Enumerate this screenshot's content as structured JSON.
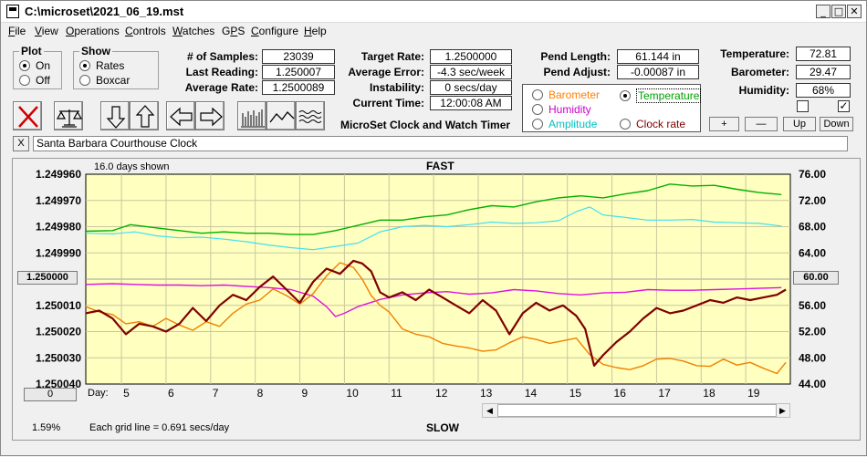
{
  "window": {
    "title": "C:\\microset\\2021_06_19.mst"
  },
  "menu": [
    {
      "pre": "",
      "u": "F",
      "post": "ile"
    },
    {
      "pre": "",
      "u": "V",
      "post": "iew"
    },
    {
      "pre": "",
      "u": "O",
      "post": "perations"
    },
    {
      "pre": "",
      "u": "C",
      "post": "ontrols"
    },
    {
      "pre": "",
      "u": "W",
      "post": "atches"
    },
    {
      "pre": "G",
      "u": "P",
      "post": "S"
    },
    {
      "pre": "",
      "u": "C",
      "post": "onfigure"
    },
    {
      "pre": "",
      "u": "H",
      "post": "elp"
    }
  ],
  "plot": {
    "label": "Plot",
    "on": "On",
    "off": "Off",
    "selected": "On"
  },
  "show": {
    "label": "Show",
    "rates": "Rates",
    "boxcar": "Boxcar",
    "selected": "Rates"
  },
  "stats": {
    "samples_label": "# of Samples:",
    "samples": "23039",
    "last_label": "Last Reading:",
    "last": "1.250007",
    "avg_rate_label": "Average Rate:",
    "avg_rate": "1.2500089",
    "target_label": "Target Rate:",
    "target": "1.2500000",
    "avg_err_label": "Average Error:",
    "avg_err": "-4.3 sec/week",
    "instab_label": "Instability:",
    "instab": "0 secs/day",
    "time_label": "Current Time:",
    "time": "12:00:08 AM",
    "app_label": "MicroSet Clock and Watch Timer",
    "pend_len_label": "Pend Length:",
    "pend_len": "61.144 in",
    "pend_adj_label": "Pend Adjust:",
    "pend_adj": "-0.00087 in",
    "temp_label": "Temperature:",
    "temp": "72.81",
    "baro_label": "Barometer:",
    "baro": "29.47",
    "hum_label": "Humidity:",
    "hum": "68%"
  },
  "sensor_select": {
    "barometer": "Barometer",
    "temperature": "Temperature",
    "humidity": "Humidity",
    "amplitude": "Amplitude",
    "clock_rate": "Clock rate",
    "selected": "Temperature",
    "colors": {
      "barometer": "#ff8000",
      "temperature": "#00a000",
      "humidity": "#cc00cc",
      "amplitude": "#00c0c0",
      "clock_rate": "#800000"
    }
  },
  "scale_buttons": {
    "plus": "+",
    "minus": "—",
    "up": "Up",
    "down": "Down"
  },
  "checks": {
    "left": false,
    "right": true
  },
  "watch_name": "Santa Barbara Courthouse Clock",
  "close_x": "X",
  "chart_data": {
    "type": "line",
    "top_label": "FAST",
    "bottom_label": "SLOW",
    "days_shown": "16.0 days shown",
    "grid_note": "Each grid line = 0.691 secs/day",
    "percent": "1.59%",
    "left_button": "1.250000",
    "right_button": "60.00",
    "zero_button": "0",
    "day_label": "Day:",
    "x_ticks": [
      "5",
      "6",
      "7",
      "8",
      "9",
      "10",
      "11",
      "12",
      "13",
      "14",
      "15",
      "16",
      "17",
      "18",
      "19"
    ],
    "x_range": [
      4.2,
      20.0
    ],
    "y_left_ticks": [
      "1.249960",
      "1.249970",
      "1.249980",
      "1.249990",
      "1.250000",
      "1.250010",
      "1.250020",
      "1.250030",
      "1.250040"
    ],
    "y_left_range": [
      1.24996,
      1.25004
    ],
    "y_right_ticks": [
      "76.00",
      "72.00",
      "68.00",
      "64.00",
      "60.00",
      "56.00",
      "52.00",
      "48.00",
      "44.00"
    ],
    "y_right_range": [
      76,
      44
    ],
    "series": [
      {
        "name": "Temperature",
        "color": "#00b000",
        "width": 1.4,
        "x": [
          4.2,
          4.8,
          5.2,
          5.8,
          6.3,
          6.8,
          7.3,
          7.8,
          8.3,
          8.8,
          9.3,
          9.8,
          10.3,
          10.8,
          11.3,
          11.8,
          12.3,
          12.8,
          13.3,
          13.8,
          14.3,
          14.8,
          15.3,
          15.8,
          16.3,
          16.8,
          17.3,
          17.8,
          18.3,
          18.8,
          19.3,
          19.8
        ],
        "y": [
          67.3,
          67.4,
          68.3,
          67.8,
          67.4,
          67.0,
          67.2,
          67.0,
          67.0,
          66.8,
          66.8,
          67.4,
          68.2,
          69.0,
          69.0,
          69.5,
          69.8,
          70.6,
          71.2,
          71.0,
          71.8,
          72.4,
          72.7,
          72.4,
          73.0,
          73.5,
          74.5,
          74.2,
          74.3,
          73.7,
          73.2,
          72.9
        ]
      },
      {
        "name": "Amplitude",
        "color": "#40e0f0",
        "width": 1.2,
        "x": [
          4.2,
          4.8,
          5.3,
          5.8,
          6.3,
          6.8,
          7.3,
          7.8,
          8.3,
          8.8,
          9.3,
          9.8,
          10.3,
          10.8,
          11.3,
          11.8,
          12.3,
          12.8,
          13.3,
          13.8,
          14.3,
          14.8,
          15.2,
          15.5,
          15.8,
          16.3,
          16.8,
          17.3,
          17.8,
          18.3,
          18.8,
          19.3,
          19.8
        ],
        "y": [
          67.0,
          66.9,
          67.2,
          66.6,
          66.3,
          66.4,
          66.1,
          65.7,
          65.2,
          64.8,
          64.5,
          65.0,
          65.5,
          67.2,
          68.0,
          68.2,
          68.0,
          68.3,
          68.7,
          68.5,
          68.6,
          68.9,
          70.3,
          71.0,
          69.8,
          69.4,
          69.0,
          69.0,
          69.1,
          68.7,
          68.6,
          68.5,
          68.1
        ]
      },
      {
        "name": "Humidity",
        "color": "#e010e0",
        "width": 1.4,
        "x": [
          4.2,
          4.8,
          5.3,
          5.8,
          6.3,
          6.8,
          7.3,
          7.8,
          8.3,
          8.8,
          9.3,
          9.6,
          9.8,
          10.0,
          10.3,
          10.8,
          11.3,
          11.8,
          12.3,
          12.8,
          13.3,
          13.8,
          14.3,
          14.8,
          15.3,
          15.8,
          16.3,
          16.8,
          17.3,
          17.8,
          18.3,
          18.8,
          19.3,
          19.8
        ],
        "y": [
          59.2,
          59.3,
          59.2,
          59.1,
          59.1,
          59.0,
          59.1,
          58.9,
          58.7,
          58.4,
          57.4,
          55.8,
          54.3,
          54.8,
          55.8,
          56.9,
          57.6,
          57.9,
          58.1,
          57.7,
          57.9,
          58.4,
          58.2,
          57.8,
          57.6,
          57.9,
          58.0,
          58.4,
          58.3,
          58.3,
          58.4,
          58.5,
          58.6,
          58.7
        ]
      },
      {
        "name": "Barometer",
        "color": "#f08000",
        "width": 1.4,
        "x": [
          4.2,
          4.5,
          4.8,
          5.1,
          5.4,
          5.7,
          6.0,
          6.3,
          6.6,
          6.9,
          7.2,
          7.5,
          7.8,
          8.1,
          8.4,
          8.7,
          9.0,
          9.3,
          9.6,
          9.9,
          10.2,
          10.4,
          10.6,
          10.8,
          11.0,
          11.3,
          11.6,
          11.9,
          12.2,
          12.5,
          12.8,
          13.1,
          13.4,
          13.7,
          14.0,
          14.3,
          14.6,
          14.9,
          15.2,
          15.5,
          15.8,
          16.1,
          16.4,
          16.7,
          17.0,
          17.3,
          17.6,
          17.9,
          18.2,
          18.5,
          18.8,
          19.1,
          19.4,
          19.7,
          19.9
        ],
        "y": [
          55.8,
          55.0,
          54.6,
          53.2,
          53.5,
          52.8,
          54.0,
          53.0,
          52.2,
          53.5,
          52.8,
          54.8,
          56.2,
          56.8,
          58.5,
          57.5,
          56.2,
          57.8,
          60.5,
          62.5,
          61.8,
          60.0,
          57.5,
          56.0,
          55.0,
          52.4,
          51.6,
          51.2,
          50.2,
          49.8,
          49.5,
          49.0,
          49.2,
          50.3,
          51.2,
          50.8,
          50.2,
          50.6,
          51.0,
          48.5,
          47.0,
          46.5,
          46.2,
          46.8,
          47.8,
          47.9,
          47.5,
          46.8,
          46.7,
          47.8,
          46.9,
          47.3,
          46.4,
          45.6,
          47.3
        ]
      },
      {
        "name": "Clock rate",
        "color": "#800000",
        "width": 2.2,
        "x": [
          4.2,
          4.5,
          4.8,
          5.1,
          5.4,
          5.7,
          6.0,
          6.3,
          6.6,
          6.9,
          7.2,
          7.5,
          7.8,
          8.1,
          8.4,
          8.7,
          9.0,
          9.3,
          9.6,
          9.9,
          10.2,
          10.4,
          10.6,
          10.8,
          11.0,
          11.3,
          11.6,
          11.9,
          12.2,
          12.5,
          12.8,
          13.1,
          13.4,
          13.7,
          14.0,
          14.3,
          14.6,
          14.9,
          15.2,
          15.4,
          15.6,
          15.8,
          16.1,
          16.4,
          16.7,
          17.0,
          17.3,
          17.6,
          17.9,
          18.2,
          18.5,
          18.8,
          19.1,
          19.4,
          19.7,
          19.9
        ],
        "y": [
          1.250013,
          1.250012,
          1.250015,
          1.250021,
          1.250017,
          1.250018,
          1.25002,
          1.250017,
          1.250011,
          1.250016,
          1.25001,
          1.250006,
          1.250008,
          1.250003,
          1.249999,
          1.250004,
          1.250009,
          1.250001,
          1.249996,
          1.249998,
          1.249993,
          1.249994,
          1.249997,
          1.250005,
          1.250007,
          1.250005,
          1.250008,
          1.250004,
          1.250007,
          1.25001,
          1.250013,
          1.250008,
          1.250012,
          1.250021,
          1.250013,
          1.250009,
          1.250012,
          1.25001,
          1.250014,
          1.250019,
          1.250033,
          1.250029,
          1.250024,
          1.25002,
          1.250015,
          1.250011,
          1.250013,
          1.250012,
          1.25001,
          1.250008,
          1.250009,
          1.250007,
          1.250008,
          1.250007,
          1.250006,
          1.250004
        ]
      }
    ]
  }
}
